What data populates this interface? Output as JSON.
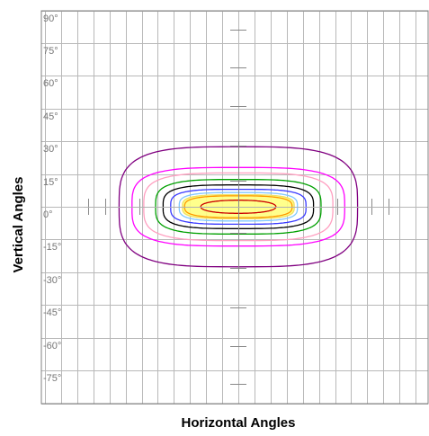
{
  "chart_data": {
    "type": "contour",
    "xlabel": "Horizontal Angles",
    "ylabel": "Vertical Angles",
    "x_range": [
      -90,
      90
    ],
    "y_range": [
      -90,
      90
    ],
    "y_ticks": [
      "90°",
      "75°",
      "60°",
      "45°",
      "30°",
      "15°",
      "0°",
      "-15°",
      "-30°",
      "-45°",
      "-60°",
      "-75°"
    ],
    "y_tick_values": [
      90,
      75,
      60,
      45,
      30,
      15,
      0,
      -15,
      -30,
      -45,
      -60,
      -75
    ],
    "x_grid_step": 7.5,
    "grid": true,
    "contours": [
      {
        "color": "#800080",
        "rx": 55.5,
        "ry": 27.5,
        "exp": 3.5
      },
      {
        "color": "#ff00ff",
        "rx": 49.5,
        "ry": 18.0,
        "exp": 3.5
      },
      {
        "color": "#ff9fc0",
        "rx": 44.0,
        "ry": 15.5,
        "exp": 3.5
      },
      {
        "color": "#00a000",
        "rx": 38.5,
        "ry": 12.5,
        "exp": 3.5
      },
      {
        "color": "#000000",
        "rx": 35.0,
        "ry": 10.0,
        "exp": 3.5
      },
      {
        "color": "#3a3aff",
        "rx": 31.5,
        "ry": 8.0,
        "exp": 3.5
      },
      {
        "color": "#80c8ff",
        "rx": 27.5,
        "ry": 6.5,
        "exp": 3.5
      },
      {
        "color": "#ffff80",
        "rx": 26.0,
        "ry": 5.5,
        "exp": 3.5,
        "filled": true
      },
      {
        "color": "#ff9900",
        "rx": 25.0,
        "ry": 5.0,
        "exp": 3.0
      },
      {
        "color": "#cc0000",
        "rx": 17.5,
        "ry": 3.0,
        "exp": 2.2
      }
    ],
    "center_ticks_y": [
      81,
      64,
      46,
      28,
      12,
      -12,
      -28,
      -46,
      -64,
      -81
    ],
    "center_ticks_x": [
      -70,
      -62,
      -46,
      46,
      62,
      70
    ]
  }
}
